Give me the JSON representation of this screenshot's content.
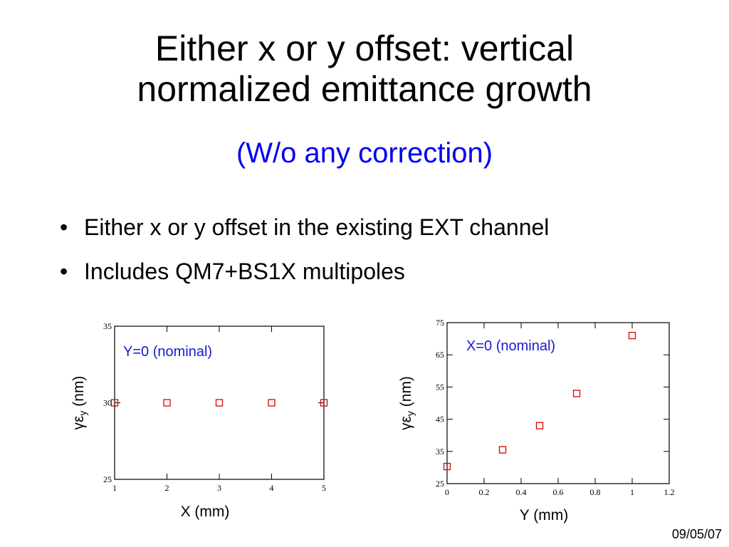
{
  "slide": {
    "title_line1": "Either x or y offset: vertical",
    "title_line2": "normalized emittance growth",
    "subtitle": "(W/o any correction)",
    "bullets": [
      "Either x or y offset in the existing EXT channel",
      "Includes QM7+BS1X multipoles"
    ],
    "bullet_glyph": "•",
    "date": "09/05/07"
  },
  "colors": {
    "subtitle": "#0000ee",
    "annotation": "#1a1acc",
    "marker": "#dd0000"
  },
  "chart_data": [
    {
      "type": "scatter",
      "xlabel": "X (mm)",
      "ylabel": "γε",
      "ylabel_sub": "y",
      "ylabel_unit": " (nm)",
      "annotation": "Y=0 (nominal)",
      "xlim": [
        1,
        5
      ],
      "ylim": [
        25,
        35
      ],
      "xticks": [
        "1",
        "2",
        "3",
        "4",
        "5"
      ],
      "yticks": [
        "25",
        "30",
        "35"
      ],
      "x": [
        1,
        2,
        3,
        4,
        5
      ],
      "y": [
        30,
        30,
        30,
        30,
        30
      ],
      "marker": "open-square",
      "grid": false
    },
    {
      "type": "scatter",
      "xlabel": "Y (mm)",
      "ylabel": "γε",
      "ylabel_sub": "y",
      "ylabel_unit": " (nm)",
      "annotation": "X=0 (nominal)",
      "xlim": [
        0,
        1.2
      ],
      "ylim": [
        25,
        75
      ],
      "xticks": [
        "0",
        "0.2",
        "0.4",
        "0.6",
        "0.8",
        "1",
        "1.2"
      ],
      "yticks": [
        "25",
        "35",
        "45",
        "55",
        "65",
        "75"
      ],
      "x": [
        0,
        0.3,
        0.5,
        0.7,
        1.0
      ],
      "y": [
        30.3,
        35.5,
        43,
        53,
        71
      ],
      "marker": "open-square",
      "grid": false
    }
  ]
}
